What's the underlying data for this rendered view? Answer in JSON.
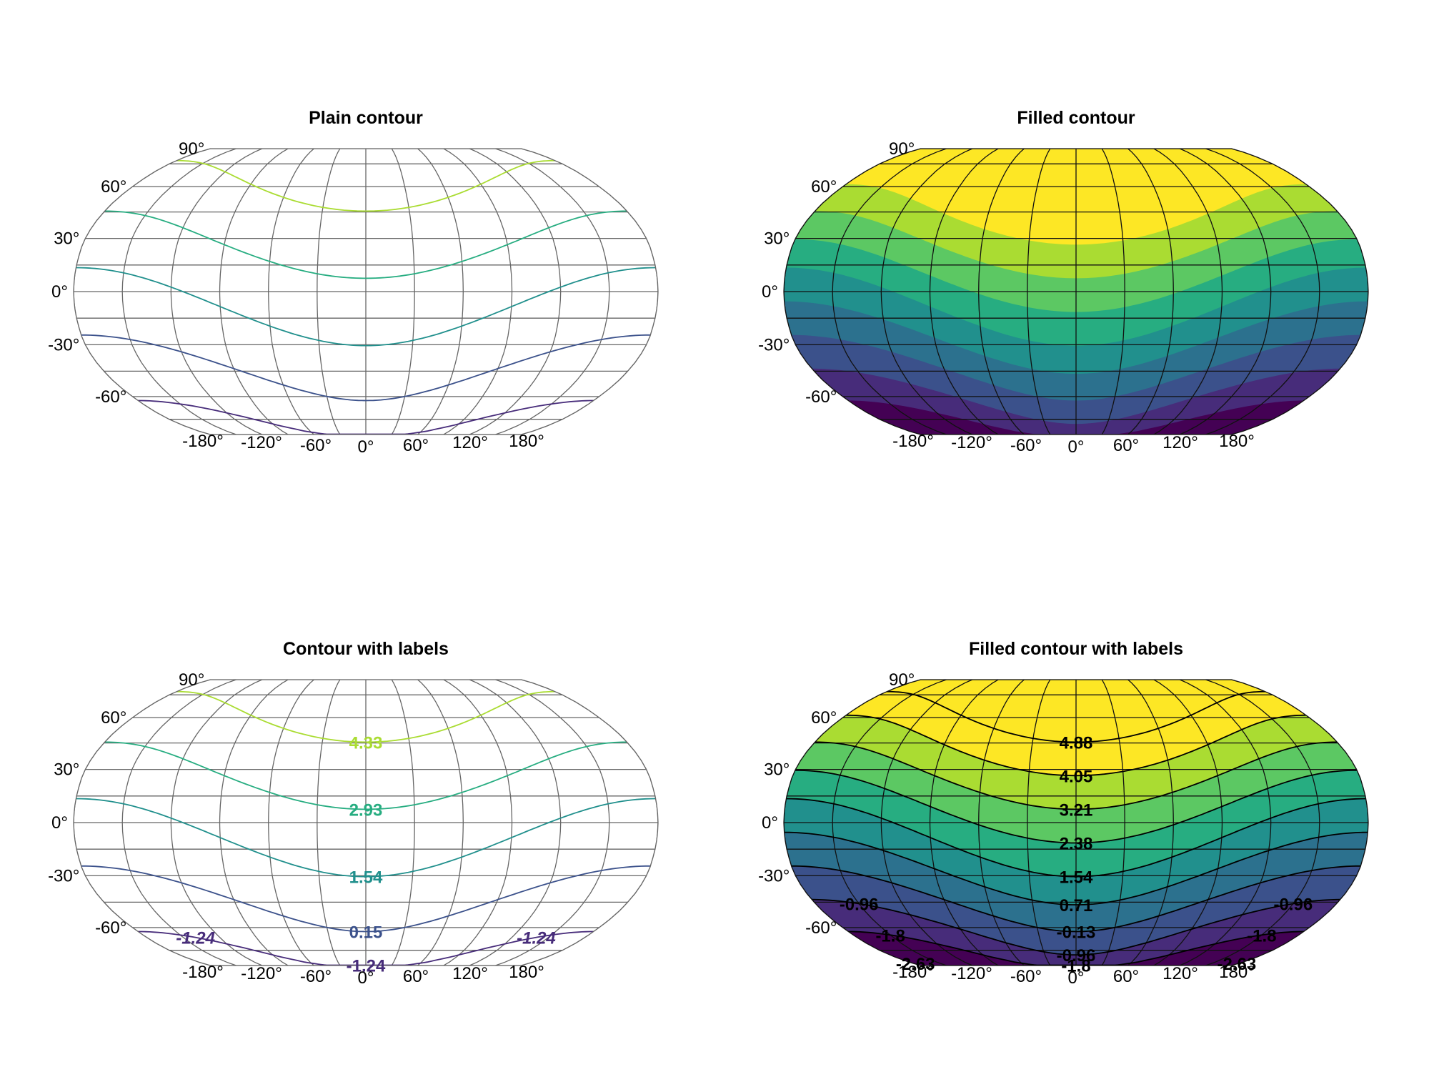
{
  "figure": {
    "colormap": [
      "#440154",
      "#472c7a",
      "#3b518b",
      "#2c718e",
      "#21908d",
      "#27ad81",
      "#5cc863",
      "#aadc32",
      "#fde725"
    ],
    "gridline_color_plain": "#666666",
    "gridline_color_filled": "#111111"
  },
  "chart_data": [
    {
      "type": "contour",
      "title": "Plain contour",
      "projection": "Robinson",
      "filled": false,
      "labels": false,
      "xticks": [
        "-180°",
        "-120°",
        "-60°",
        "0°",
        "60°",
        "120°",
        "180°"
      ],
      "yticks": [
        "90°",
        "60°",
        "30°",
        "0°",
        "-30°",
        "-60°"
      ],
      "levels": [
        -1.24,
        0.15,
        1.54,
        2.93,
        4.33
      ],
      "level_labels": []
    },
    {
      "type": "contour",
      "title": "Filled contour",
      "projection": "Robinson",
      "filled": true,
      "labels": false,
      "xticks": [
        "-180°",
        "-120°",
        "-60°",
        "0°",
        "60°",
        "120°",
        "180°"
      ],
      "yticks": [
        "90°",
        "60°",
        "30°",
        "0°",
        "-30°",
        "-60°"
      ],
      "levels": [
        -2.63,
        -1.8,
        -0.96,
        -0.13,
        0.71,
        1.54,
        2.38,
        3.21,
        4.05,
        4.88
      ],
      "level_labels": []
    },
    {
      "type": "contour",
      "title": "Contour with labels",
      "projection": "Robinson",
      "filled": false,
      "labels": true,
      "xticks": [
        "-180°",
        "-120°",
        "-60°",
        "0°",
        "60°",
        "120°",
        "180°"
      ],
      "yticks": [
        "90°",
        "60°",
        "30°",
        "0°",
        "-30°",
        "-60°"
      ],
      "levels": [
        -1.24,
        0.15,
        1.54,
        2.93,
        4.33
      ],
      "level_labels": [
        "-1.24",
        "0.15",
        "1.54",
        "2.93",
        "4.33"
      ]
    },
    {
      "type": "contour",
      "title": "Filled contour with labels",
      "projection": "Robinson",
      "filled": true,
      "labels": true,
      "xticks": [
        "-180°",
        "-120°",
        "-60°",
        "0°",
        "60°",
        "120°",
        "180°"
      ],
      "yticks": [
        "90°",
        "60°",
        "30°",
        "0°",
        "-30°",
        "-60°"
      ],
      "levels": [
        -2.63,
        -1.8,
        -0.96,
        -0.13,
        0.71,
        1.54,
        2.38,
        3.21,
        4.05,
        4.88
      ],
      "level_labels": [
        "-2.63",
        "-1.8",
        "-0.96",
        "-0.13",
        "0.71",
        "1.54",
        "2.38",
        "3.21",
        "4.05",
        "4.88"
      ]
    }
  ]
}
